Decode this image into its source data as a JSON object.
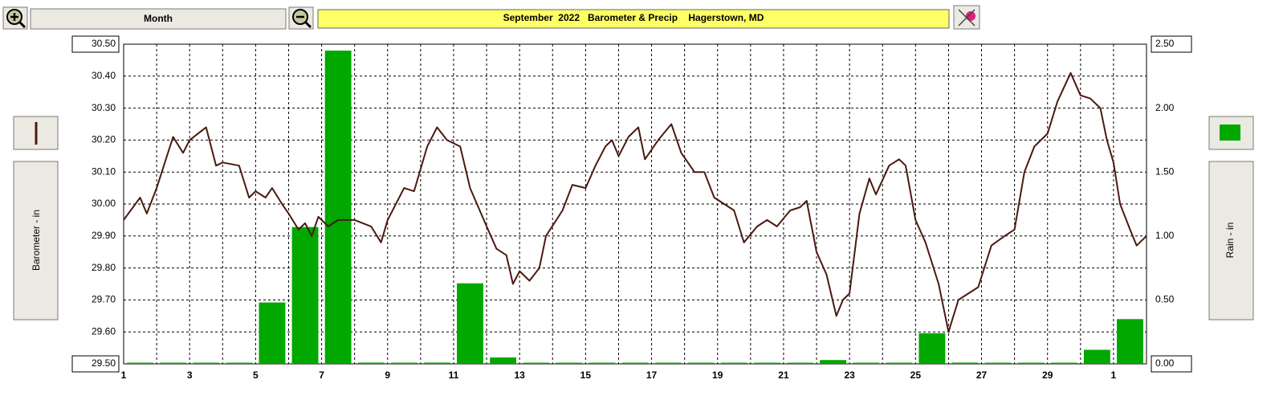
{
  "toolbar": {
    "range": "Month"
  },
  "chart_data": {
    "type": "combo",
    "title": "September  2022   Barometer & Precip    Hagerstown, MD",
    "ylabel": "Barometer - in",
    "y2label": "Rain - in",
    "xlim": [
      1,
      32
    ],
    "xticks": [
      1,
      3,
      5,
      7,
      9,
      11,
      13,
      15,
      17,
      19,
      21,
      23,
      25,
      27,
      29,
      {
        "value": 31,
        "label": "1"
      }
    ],
    "xminorticks": [
      2,
      4,
      6,
      8,
      10,
      12,
      14,
      16,
      18,
      20,
      22,
      24,
      26,
      28,
      30,
      32
    ],
    "ylim": [
      29.5,
      30.5
    ],
    "yticks": [
      {
        "value": 29.5,
        "label": "29.50"
      },
      {
        "value": 29.6,
        "label": "29.60"
      },
      {
        "value": 29.7,
        "label": "29.70"
      },
      {
        "value": 29.8,
        "label": "29.80"
      },
      {
        "value": 29.9,
        "label": "29.90"
      },
      {
        "value": 30.0,
        "label": "30.00"
      },
      {
        "value": 30.1,
        "label": "30.10"
      },
      {
        "value": 30.2,
        "label": "30.20"
      },
      {
        "value": 30.3,
        "label": "30.30"
      },
      {
        "value": 30.4,
        "label": "30.40"
      },
      {
        "value": 30.5,
        "label": "30.50"
      }
    ],
    "y2lim": [
      0,
      2.5
    ],
    "y2ticks": [
      {
        "value": 0,
        "label": "0.00"
      },
      {
        "value": 0.5,
        "label": "0.50"
      },
      {
        "value": 1,
        "label": "1.00"
      },
      {
        "value": 1.5,
        "label": "1.50"
      },
      {
        "value": 2,
        "label": "2.00"
      },
      {
        "value": 2.5,
        "label": "2.50"
      }
    ],
    "grid": true,
    "series": [
      {
        "name": "Barometer - in",
        "type": "line",
        "color": "#4a1a10",
        "x": [
          1,
          1.5,
          1.7,
          2.0,
          2.5,
          2.8,
          3.0,
          3.5,
          3.8,
          4.0,
          4.5,
          4.8,
          5.0,
          5.3,
          5.5,
          5.8,
          6.0,
          6.3,
          6.5,
          6.7,
          6.9,
          7.2,
          7.5,
          8.0,
          8.5,
          8.8,
          9.0,
          9.5,
          9.8,
          10.2,
          10.5,
          10.8,
          11.2,
          11.5,
          12.0,
          12.3,
          12.6,
          12.8,
          13.0,
          13.3,
          13.6,
          13.8,
          14.3,
          14.6,
          15.0,
          15.3,
          15.6,
          15.8,
          16.0,
          16.3,
          16.6,
          16.8,
          17.2,
          17.6,
          17.9,
          18.3,
          18.6,
          18.9,
          19.2,
          19.5,
          19.8,
          20.2,
          20.5,
          20.8,
          21.2,
          21.5,
          21.7,
          22.0,
          22.3,
          22.6,
          22.8,
          23.0,
          23.3,
          23.6,
          23.8,
          24.2,
          24.5,
          24.7,
          25.0,
          25.3,
          25.7,
          26.0,
          26.3,
          26.6,
          26.9,
          27.3,
          27.7,
          28.0,
          28.3,
          28.6,
          29.0,
          29.3,
          29.7,
          30.0,
          30.3,
          30.6,
          30.8,
          31.0,
          31.2,
          31.5,
          31.7,
          32.0
        ],
        "values": [
          29.95,
          30.02,
          29.97,
          30.05,
          30.21,
          30.16,
          30.2,
          30.24,
          30.12,
          30.13,
          30.12,
          30.02,
          30.04,
          30.02,
          30.05,
          30.0,
          29.97,
          29.92,
          29.94,
          29.9,
          29.96,
          29.93,
          29.95,
          29.95,
          29.93,
          29.88,
          29.95,
          30.05,
          30.04,
          30.18,
          30.24,
          30.2,
          30.18,
          30.05,
          29.93,
          29.86,
          29.84,
          29.75,
          29.79,
          29.76,
          29.8,
          29.9,
          29.98,
          30.06,
          30.05,
          30.12,
          30.18,
          30.2,
          30.15,
          30.21,
          30.24,
          30.14,
          30.2,
          30.25,
          30.16,
          30.1,
          30.1,
          30.02,
          30.0,
          29.98,
          29.88,
          29.93,
          29.95,
          29.93,
          29.98,
          29.99,
          30.01,
          29.85,
          29.78,
          29.65,
          29.7,
          29.72,
          29.97,
          30.08,
          30.03,
          30.12,
          30.14,
          30.12,
          29.95,
          29.88,
          29.75,
          29.6,
          29.7,
          29.72,
          29.74,
          29.87,
          29.9,
          29.92,
          30.1,
          30.18,
          30.22,
          30.32,
          30.41,
          30.34,
          30.33,
          30.3,
          30.2,
          30.13,
          30.0,
          29.92,
          29.87,
          29.9
        ]
      },
      {
        "name": "Rain - in",
        "type": "bar",
        "axis": "y2",
        "color": "#00a800",
        "x": [
          1,
          2,
          3,
          4,
          5,
          6,
          7,
          8,
          9,
          10,
          11,
          12,
          13,
          14,
          15,
          16,
          17,
          18,
          19,
          20,
          21,
          22,
          23,
          24,
          25,
          26,
          27,
          28,
          29,
          30,
          31
        ],
        "values": [
          0,
          0,
          0,
          0,
          0.48,
          1.07,
          2.45,
          0.01,
          0,
          0.01,
          0.63,
          0.05,
          0,
          0,
          0,
          0,
          0,
          0,
          0,
          0,
          0,
          0.03,
          0,
          0,
          0.24,
          0.01,
          0,
          0,
          0,
          0.11,
          0.35
        ]
      }
    ]
  }
}
